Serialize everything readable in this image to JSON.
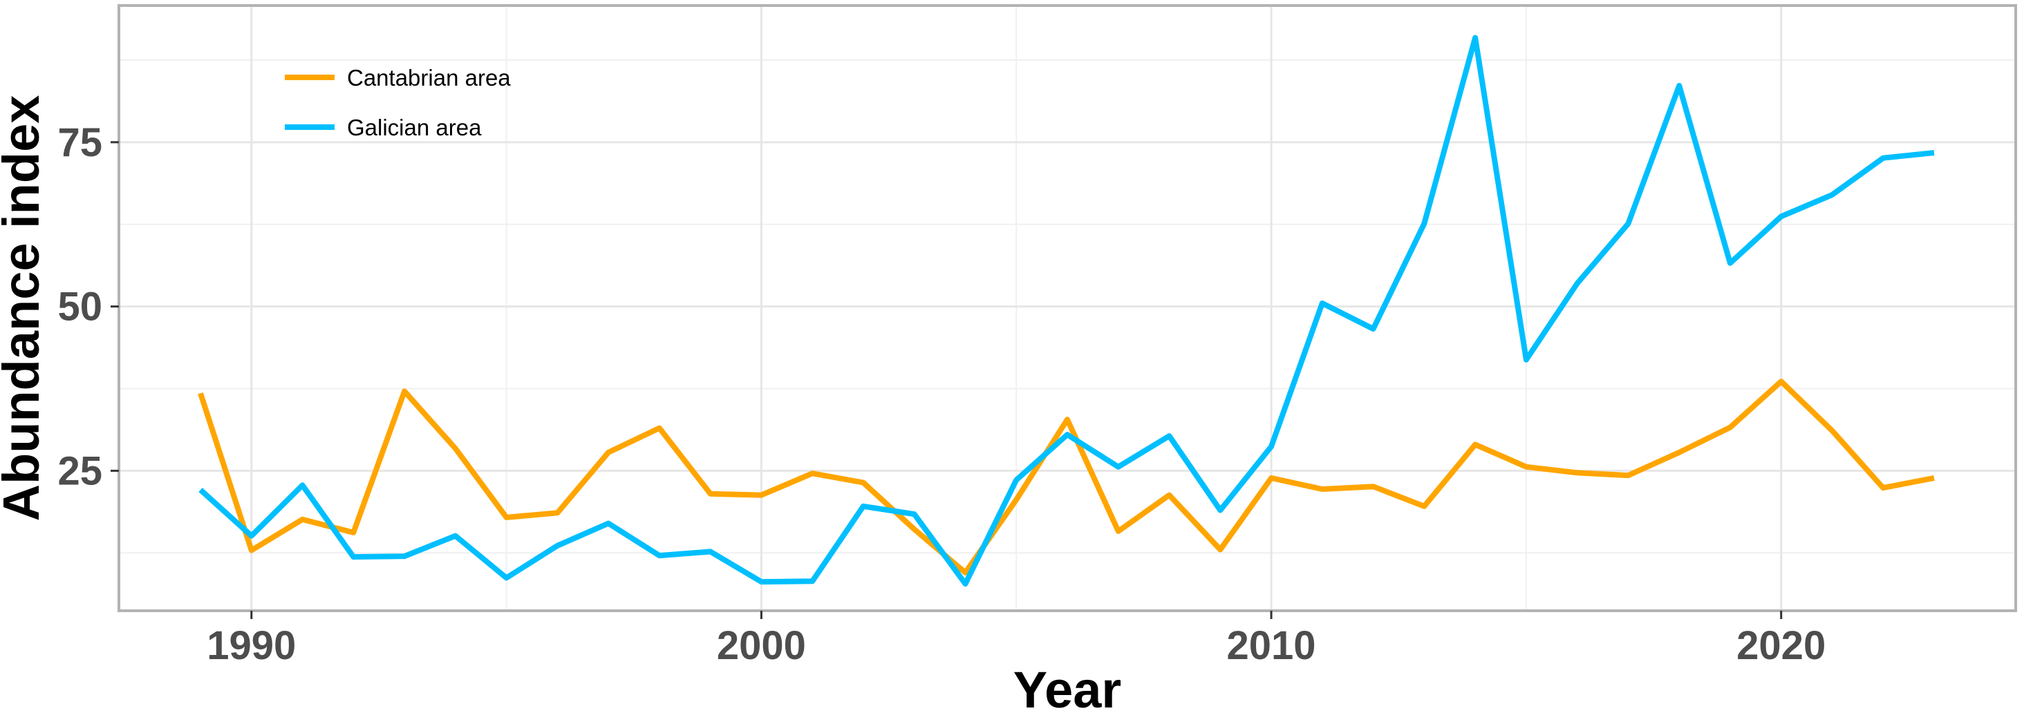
{
  "chart_data": {
    "type": "line",
    "title": "",
    "xlabel": "Year",
    "ylabel": "Abundance index",
    "xlim": [
      1987.4,
      2024.6
    ],
    "ylim": [
      3.7,
      95.8
    ],
    "xticks": [
      1990,
      2000,
      2010,
      2020
    ],
    "xtick_labels": [
      "1990",
      "2000",
      "2010",
      "2020"
    ],
    "yticks": [
      25,
      50,
      75
    ],
    "ytick_labels": [
      "25",
      "50",
      "75"
    ],
    "grid": true,
    "legend_position": "top-left",
    "x": [
      1989,
      1990,
      1991,
      1992,
      1993,
      1994,
      1995,
      1996,
      1997,
      1998,
      1999,
      2000,
      2001,
      2002,
      2003,
      2004,
      2005,
      2006,
      2007,
      2008,
      2009,
      2010,
      2011,
      2012,
      2013,
      2014,
      2015,
      2016,
      2017,
      2018,
      2019,
      2020,
      2021,
      2022,
      2023
    ],
    "series": [
      {
        "name": "Cantabrian area",
        "color": "#ffa500",
        "values": [
          36.8,
          12.9,
          17.6,
          15.6,
          37.1,
          28.4,
          17.9,
          18.6,
          27.8,
          31.5,
          21.5,
          21.3,
          24.6,
          23.2,
          16.1,
          9.5,
          20.6,
          32.8,
          15.8,
          21.3,
          13.0,
          23.9,
          22.2,
          22.6,
          19.6,
          29.0,
          25.6,
          24.7,
          24.3,
          27.8,
          31.6,
          38.6,
          31.1,
          22.4,
          23.9
        ]
      },
      {
        "name": "Galician area",
        "color": "#00bfff",
        "values": [
          22.1,
          15.1,
          22.8,
          11.9,
          12.0,
          15.1,
          8.7,
          13.6,
          17.0,
          12.1,
          12.7,
          8.1,
          8.2,
          19.6,
          18.4,
          7.8,
          23.6,
          30.5,
          25.6,
          30.3,
          19.0,
          28.7,
          50.5,
          46.6,
          62.6,
          90.9,
          41.9,
          53.5,
          62.6,
          83.6,
          56.6,
          63.7,
          67.0,
          72.6,
          73.4
        ]
      }
    ]
  }
}
